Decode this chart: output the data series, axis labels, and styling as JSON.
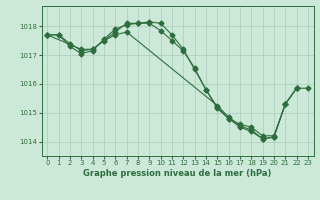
{
  "title": "Graphe pression niveau de la mer (hPa)",
  "background_color": "#cce8d8",
  "grid_color": "#aaccbb",
  "line_color": "#2d6e3e",
  "marker_color": "#2d6e3e",
  "ylim": [
    1013.5,
    1018.7
  ],
  "yticks": [
    1014,
    1015,
    1016,
    1017,
    1018
  ],
  "xlim": [
    -0.5,
    23.5
  ],
  "xticks": [
    0,
    1,
    2,
    3,
    4,
    5,
    6,
    7,
    8,
    9,
    10,
    11,
    12,
    13,
    14,
    15,
    16,
    17,
    18,
    19,
    20,
    21,
    22,
    23
  ],
  "s1_x": [
    0,
    1,
    2,
    3,
    4,
    5,
    6,
    7,
    8,
    9,
    10,
    11,
    12,
    13,
    14,
    15,
    16,
    17,
    18,
    19,
    20,
    21,
    22
  ],
  "s1_y": [
    1017.7,
    1017.7,
    1017.4,
    1017.15,
    1017.2,
    1017.5,
    1017.8,
    1018.1,
    1018.1,
    1018.15,
    1018.1,
    1017.7,
    1017.2,
    1016.5,
    1015.8,
    1015.2,
    1014.8,
    1014.6,
    1014.5,
    1014.2,
    1014.2,
    1015.3,
    1015.85
  ],
  "s2_x": [
    0,
    1,
    2,
    3,
    4,
    5,
    6,
    7,
    8,
    9,
    10,
    11,
    12,
    13,
    14,
    15,
    16,
    17,
    18,
    19,
    20,
    21,
    22
  ],
  "s2_y": [
    1017.7,
    1017.7,
    1017.3,
    1017.05,
    1017.15,
    1017.55,
    1017.9,
    1018.05,
    1018.1,
    1018.1,
    1017.85,
    1017.5,
    1017.15,
    1016.55,
    1015.8,
    1015.15,
    1014.8,
    1014.5,
    1014.35,
    1014.1,
    1014.15,
    1015.3,
    1015.85
  ],
  "s3_x": [
    0,
    3,
    4,
    5,
    6,
    7,
    15,
    16,
    17,
    18,
    19,
    20,
    21,
    22,
    23
  ],
  "s3_y": [
    1017.7,
    1017.2,
    1017.2,
    1017.5,
    1017.7,
    1017.8,
    1015.25,
    1014.85,
    1014.55,
    1014.4,
    1014.1,
    1014.15,
    1015.3,
    1015.85,
    1015.85
  ]
}
